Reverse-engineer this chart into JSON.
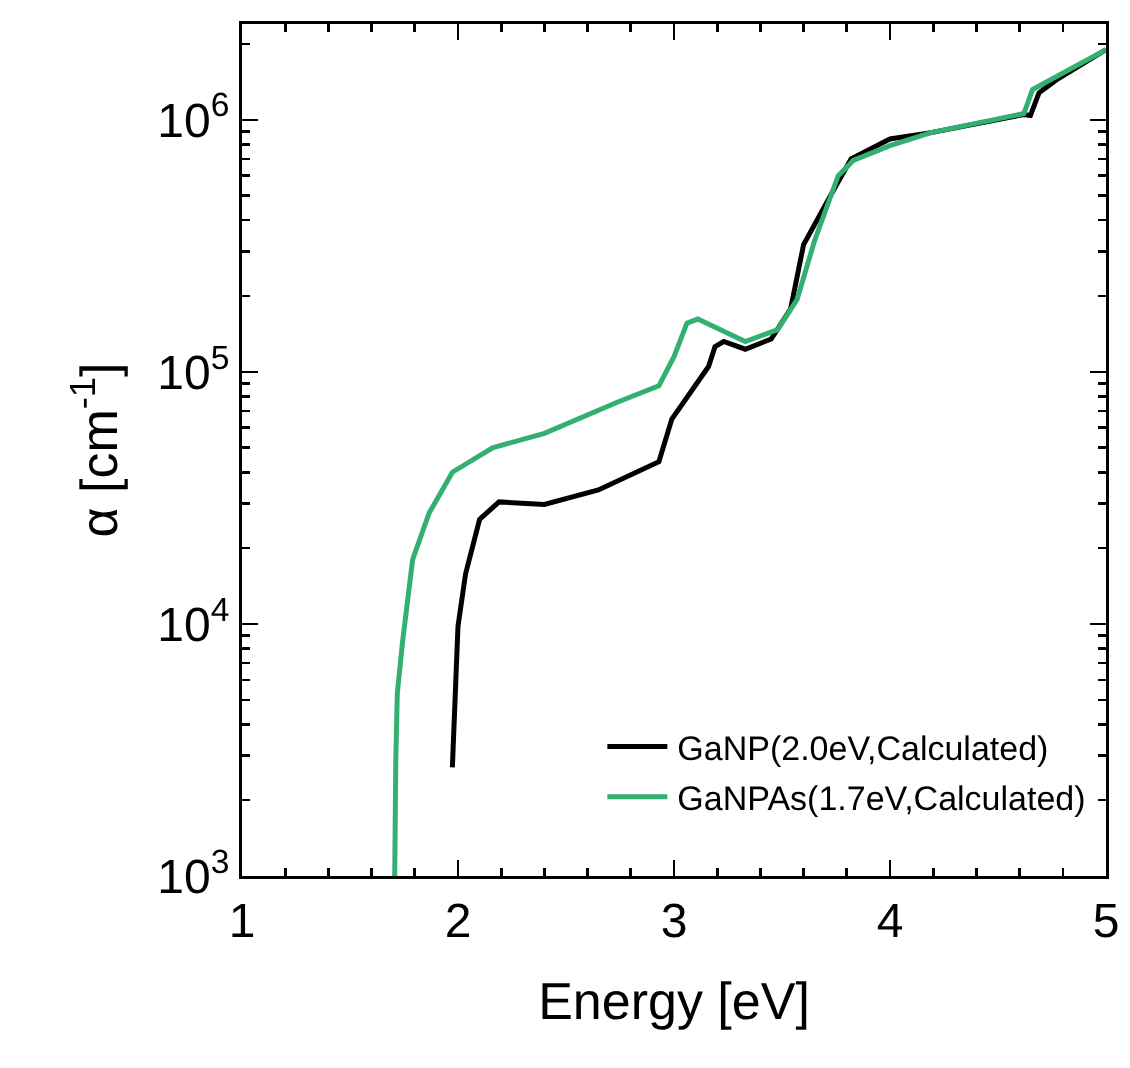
{
  "chart_data": {
    "type": "line",
    "xlabel": "Energy [eV]",
    "ylabel": "α [cm$^{-1}$]",
    "log": "y",
    "grid": false,
    "legend": "bottom right",
    "marker": "none",
    "line_style": "solid",
    "xlim": [
      1,
      5
    ],
    "xticks": [
      1,
      2,
      3,
      4,
      5
    ],
    "ylim": [
      1000,
      2400000
    ],
    "yticks": [
      {
        "value": 1000,
        "label": "10$^{3}$"
      },
      {
        "value": 10000,
        "label": "10$^{4}$"
      },
      {
        "value": 100000,
        "label": "10$^{5}$"
      },
      {
        "value": 1000000,
        "label": "10$^{6}$"
      }
    ],
    "series": [
      {
        "name": "GaNP(2.0eV,Calculated)",
        "color": "#000000",
        "x": [
          1.974,
          1.99,
          2.0,
          2.035,
          2.1,
          2.19,
          2.4,
          2.65,
          2.93,
          2.99,
          3.16,
          3.19,
          3.23,
          3.33,
          3.45,
          3.54,
          3.6,
          3.73,
          3.82,
          4.0,
          4.19,
          4.62,
          4.65,
          4.69,
          4.77,
          5.0
        ],
        "values": [
          2700,
          6000,
          9800,
          15800,
          26000,
          30500,
          29800,
          34000,
          44000,
          65000,
          105000,
          126000,
          132000,
          123000,
          135000,
          178000,
          320000,
          510000,
          700000,
          840000,
          890000,
          1050000,
          1040000,
          1280000,
          1440000,
          1900000
        ]
      },
      {
        "name": "GaNPAs(1.7eV,Calculated)",
        "color": "#33b06f",
        "x": [
          1.707,
          1.712,
          1.719,
          1.744,
          1.79,
          1.866,
          1.974,
          2.16,
          2.4,
          2.74,
          2.93,
          3.0,
          3.06,
          3.11,
          3.33,
          3.48,
          3.57,
          3.65,
          3.76,
          3.83,
          4.0,
          4.19,
          4.62,
          4.66,
          5.0
        ],
        "values": [
          1000,
          2900,
          5300,
          8600,
          18000,
          27500,
          40000,
          50000,
          57000,
          76000,
          88000,
          115000,
          156000,
          162000,
          132000,
          147000,
          194000,
          330000,
          600000,
          690000,
          790000,
          890000,
          1060000,
          1320000,
          1900000
        ]
      }
    ]
  }
}
